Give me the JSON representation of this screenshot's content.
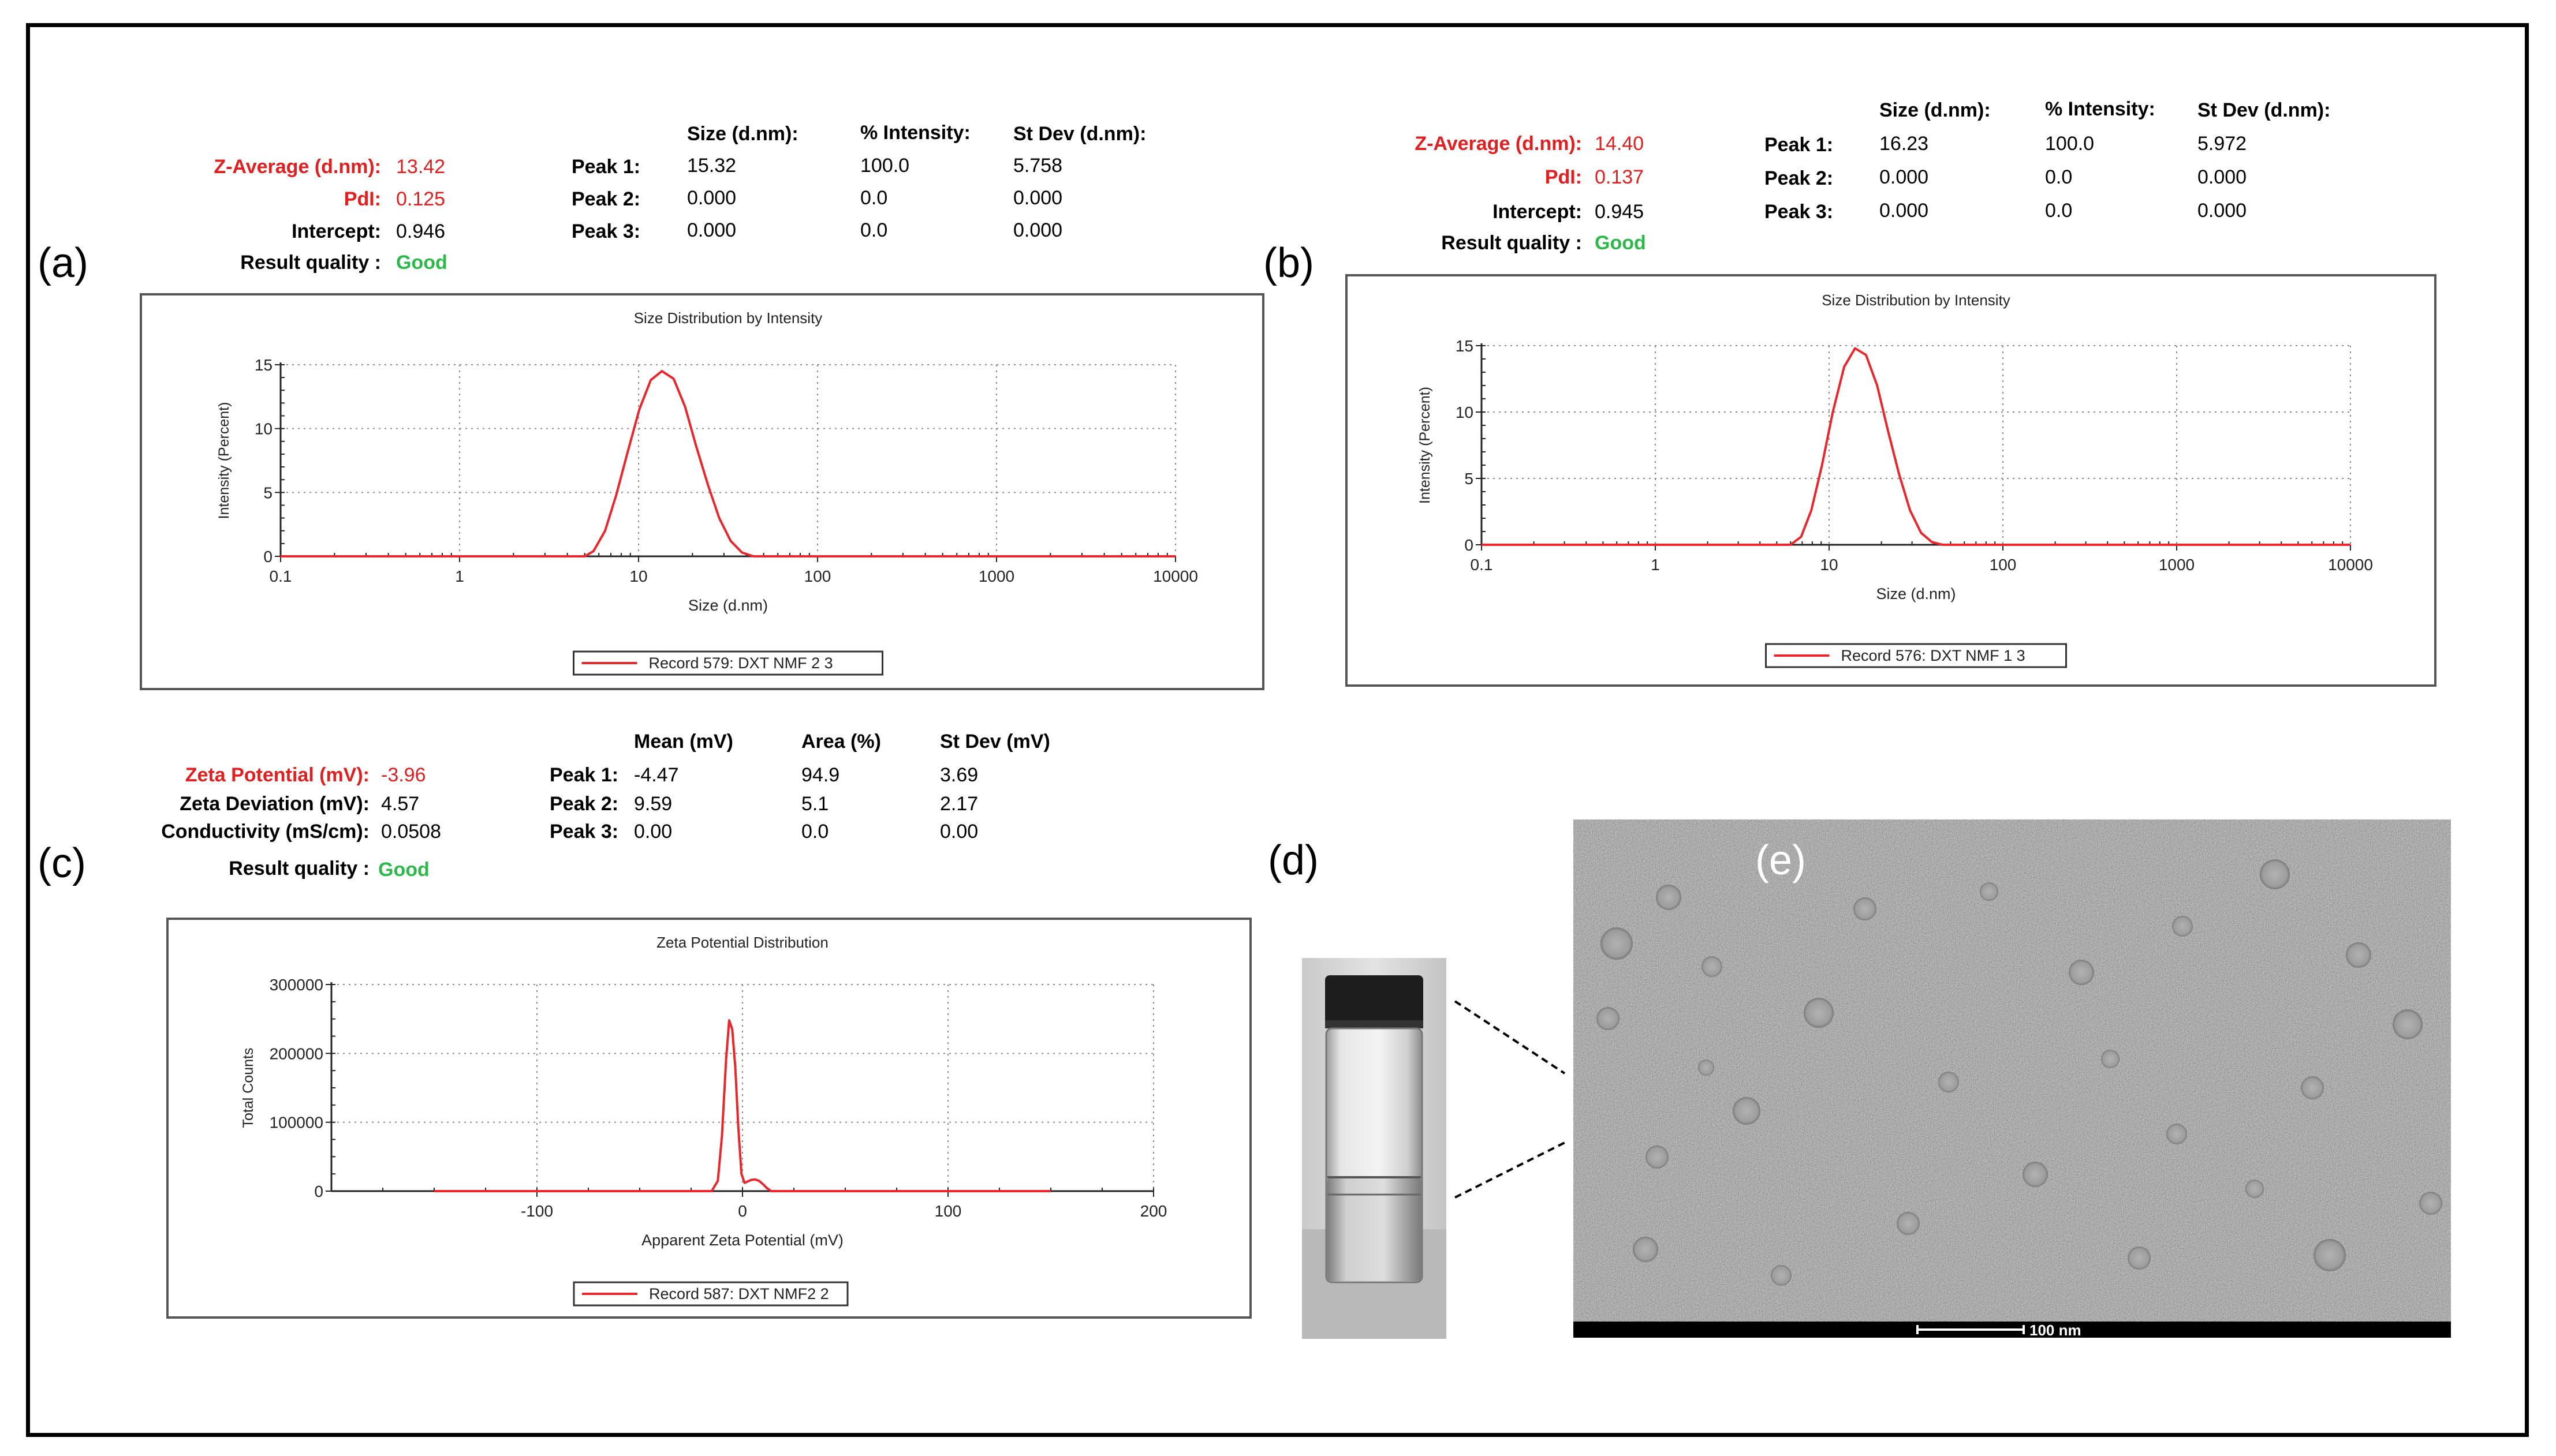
{
  "labels": {
    "a": "(a)",
    "b": "(b)",
    "c": "(c)",
    "d": "(d)",
    "e": "(e)"
  },
  "panel_a": {
    "z_avg_label": "Z-Average (d.nm):",
    "z_avg_value": "13.42",
    "pdi_label": "PdI:",
    "pdi_value": "0.125",
    "intercept_label": "Intercept:",
    "intercept_value": "0.946",
    "quality_label": "Result quality :",
    "quality_value": "Good",
    "col_size": "Size (d.nm):",
    "col_int": "% Intensity:",
    "col_sd": "St Dev (d.nm):",
    "peaks": [
      {
        "label": "Peak 1:",
        "size": "15.32",
        "int": "100.0",
        "sd": "5.758"
      },
      {
        "label": "Peak 2:",
        "size": "0.000",
        "int": "0.0",
        "sd": "0.000"
      },
      {
        "label": "Peak 3:",
        "size": "0.000",
        "int": "0.0",
        "sd": "0.000"
      }
    ]
  },
  "panel_b": {
    "z_avg_label": "Z-Average (d.nm):",
    "z_avg_value": "14.40",
    "pdi_label": "PdI:",
    "pdi_value": "0.137",
    "intercept_label": "Intercept:",
    "intercept_value": "0.945",
    "quality_label": "Result quality :",
    "quality_value": "Good",
    "col_size": "Size (d.nm):",
    "col_int": "% Intensity:",
    "col_sd": "St Dev (d.nm):",
    "peaks": [
      {
        "label": "Peak 1:",
        "size": "16.23",
        "int": "100.0",
        "sd": "5.972"
      },
      {
        "label": "Peak 2:",
        "size": "0.000",
        "int": "0.0",
        "sd": "0.000"
      },
      {
        "label": "Peak 3:",
        "size": "0.000",
        "int": "0.0",
        "sd": "0.000"
      }
    ]
  },
  "panel_c": {
    "zeta_label": "Zeta Potential (mV):",
    "zeta_value": "-3.96",
    "dev_label": "Zeta Deviation (mV):",
    "dev_value": "4.57",
    "cond_label": "Conductivity (mS/cm):",
    "cond_value": "0.0508",
    "quality_label": "Result quality :",
    "quality_value": "Good",
    "col_mean": "Mean (mV)",
    "col_area": "Area (%)",
    "col_sd": "St Dev (mV)",
    "peaks": [
      {
        "label": "Peak 1:",
        "mean": "-4.47",
        "area": "94.9",
        "sd": "3.69"
      },
      {
        "label": "Peak 2:",
        "mean": "9.59",
        "area": "5.1",
        "sd": "2.17"
      },
      {
        "label": "Peak 3:",
        "mean": "0.00",
        "area": "0.0",
        "sd": "0.00"
      }
    ]
  },
  "tem": {
    "scale_label": "100 nm"
  },
  "colors": {
    "accent": "#e02020",
    "good": "#2db84a",
    "curve": "#e8262b"
  },
  "chart_data": [
    {
      "type": "line",
      "title": "Size Distribution by Intensity",
      "xlabel": "Size (d.nm)",
      "ylabel": "Intensity (Percent)",
      "xscale": "log",
      "xlim": [
        0.1,
        10000
      ],
      "ylim": [
        0,
        15
      ],
      "xticks": [
        0.1,
        1,
        10,
        100,
        1000,
        10000
      ],
      "xtick_labels": [
        "0.1",
        "1",
        "10",
        "100",
        "1000",
        "10000"
      ],
      "yticks": [
        0,
        5,
        10,
        15
      ],
      "ytick_labels": [
        "0",
        "5",
        "10",
        "15"
      ],
      "grid": true,
      "legend": "bottom-center",
      "series": [
        {
          "name": "Record 579: DXT NMF 2 3",
          "x": [
            0.1,
            5.0,
            5.6,
            6.5,
            7.5,
            8.7,
            10.1,
            11.7,
            13.5,
            15.7,
            18.2,
            21.0,
            24.4,
            28.2,
            32.7,
            37.8,
            43.8,
            10000
          ],
          "y": [
            0,
            0,
            0.4,
            2.0,
            4.8,
            8.2,
            11.5,
            13.8,
            14.5,
            13.9,
            11.7,
            8.6,
            5.6,
            3.0,
            1.2,
            0.3,
            0,
            0
          ]
        }
      ]
    },
    {
      "type": "line",
      "title": "Size Distribution by Intensity",
      "xlabel": "Size (d.nm)",
      "ylabel": "Intensity (Percent)",
      "xscale": "log",
      "xlim": [
        0.1,
        10000
      ],
      "ylim": [
        0,
        15
      ],
      "xticks": [
        0.1,
        1,
        10,
        100,
        1000,
        10000
      ],
      "xtick_labels": [
        "0.1",
        "1",
        "10",
        "100",
        "1000",
        "10000"
      ],
      "yticks": [
        0,
        5,
        10,
        15
      ],
      "ytick_labels": [
        "0",
        "5",
        "10",
        "15"
      ],
      "grid": true,
      "legend": "bottom-center",
      "series": [
        {
          "name": "Record 576: DXT NMF 1 3",
          "x": [
            0.1,
            6.0,
            6.9,
            7.9,
            9.1,
            10.5,
            12.2,
            14.1,
            16.3,
            18.9,
            21.8,
            25.3,
            29.2,
            33.8,
            39.1,
            45.0,
            10000
          ],
          "y": [
            0,
            0,
            0.6,
            2.6,
            6.0,
            10.0,
            13.4,
            14.8,
            14.3,
            12.0,
            8.6,
            5.3,
            2.6,
            0.9,
            0.2,
            0,
            0
          ]
        }
      ]
    },
    {
      "type": "line",
      "title": "Zeta Potential Distribution",
      "xlabel": "Apparent Zeta Potential (mV)",
      "ylabel": "Total Counts",
      "xlim": [
        -200,
        200
      ],
      "ylim": [
        0,
        300000
      ],
      "xticks": [
        -100,
        0,
        100,
        200
      ],
      "xtick_labels": [
        "-100",
        "0",
        "100",
        "200"
      ],
      "yticks": [
        0,
        100000,
        200000,
        300000
      ],
      "ytick_labels": [
        "0",
        "100000",
        "200000",
        "300000"
      ],
      "grid": true,
      "legend": "bottom-center",
      "series": [
        {
          "name": "Record 587: DXT NMF2 2",
          "x": [
            -150,
            -15,
            -12,
            -10,
            -8,
            -6.5,
            -5,
            -3.5,
            -2,
            -0.5,
            1,
            2.5,
            4,
            6,
            8,
            10,
            12,
            14,
            150
          ],
          "y": [
            0,
            0,
            15000,
            80000,
            190000,
            248000,
            235000,
            180000,
            90000,
            25000,
            12000,
            14000,
            16000,
            17000,
            15000,
            10000,
            4000,
            0,
            0
          ]
        }
      ]
    }
  ]
}
